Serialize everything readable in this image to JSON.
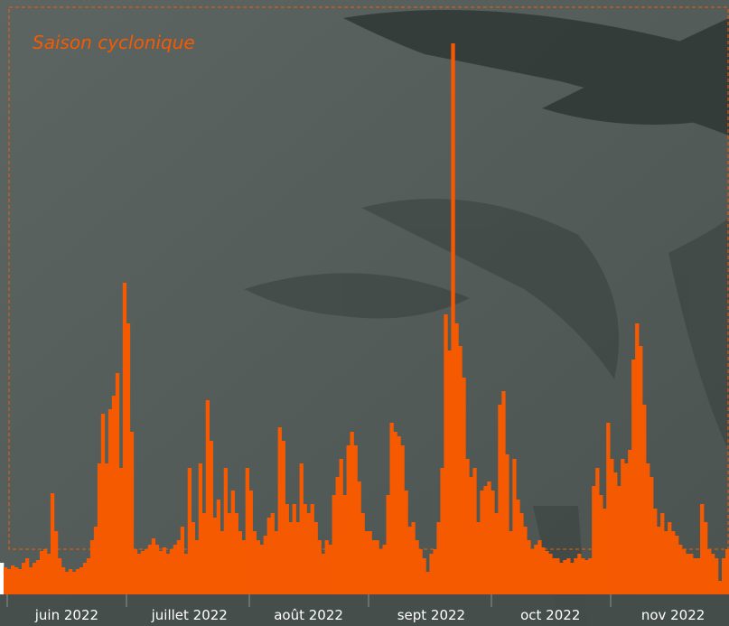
{
  "chart_data": {
    "type": "bar",
    "title": "Saison cyclonique",
    "categories": [
      null,
      null,
      null,
      null,
      null,
      null,
      null,
      null,
      null,
      null,
      null,
      null,
      null,
      null,
      null,
      null,
      null,
      null,
      "juin 2022",
      null,
      null,
      null,
      null,
      null,
      null,
      null,
      null,
      null,
      null,
      null,
      null,
      null,
      null,
      null,
      null,
      null,
      null,
      null,
      null,
      null,
      null,
      null,
      null,
      null,
      null,
      null,
      null,
      null,
      null,
      null,
      null,
      null,
      "juillet 2022",
      null,
      null,
      null,
      null,
      null,
      null,
      null,
      null,
      null,
      null,
      null,
      null,
      null,
      null,
      null,
      null,
      null,
      null,
      null,
      null,
      null,
      null,
      null,
      null,
      null,
      null,
      null,
      null,
      null,
      null,
      null,
      null,
      "août 2022",
      null,
      null,
      null,
      null,
      null,
      null,
      null,
      null,
      null,
      null,
      null,
      null,
      null,
      null,
      null,
      null,
      null,
      null,
      null,
      null,
      null,
      null,
      null,
      null,
      null,
      null,
      null,
      null,
      null,
      null,
      null,
      null,
      null,
      "sept 2022",
      null,
      null,
      null,
      null,
      null,
      null,
      null,
      null,
      null,
      null,
      null,
      null,
      null,
      null,
      null,
      null,
      null,
      null,
      null,
      null,
      null,
      null,
      null,
      null,
      null,
      null,
      null,
      null,
      null,
      null,
      null,
      null,
      "oct 2022",
      null,
      null,
      null,
      null,
      null,
      null,
      null,
      null,
      null,
      null,
      null,
      null,
      null,
      null,
      null,
      null,
      null,
      null,
      null,
      null,
      null,
      null,
      null,
      null,
      null,
      null,
      null,
      null,
      null,
      null,
      null,
      null,
      null,
      "nov 2022",
      null,
      null,
      null,
      null,
      null,
      null,
      null,
      null,
      null,
      null,
      null,
      null,
      null,
      null,
      null
    ],
    "values": [
      35,
      30,
      28,
      32,
      30,
      28,
      35,
      40,
      30,
      35,
      38,
      48,
      50,
      45,
      112,
      70,
      40,
      30,
      25,
      28,
      25,
      28,
      30,
      35,
      40,
      60,
      75,
      145,
      200,
      145,
      205,
      220,
      245,
      140,
      345,
      300,
      180,
      50,
      45,
      48,
      50,
      55,
      62,
      55,
      48,
      52,
      45,
      50,
      55,
      60,
      75,
      45,
      140,
      80,
      60,
      145,
      90,
      215,
      170,
      85,
      105,
      70,
      140,
      90,
      115,
      90,
      70,
      60,
      140,
      115,
      70,
      60,
      55,
      65,
      85,
      90,
      70,
      185,
      170,
      100,
      80,
      100,
      80,
      145,
      100,
      90,
      100,
      80,
      60,
      45,
      60,
      55,
      110,
      130,
      150,
      110,
      165,
      180,
      165,
      125,
      90,
      70,
      70,
      60,
      60,
      50,
      55,
      110,
      190,
      180,
      175,
      165,
      115,
      75,
      80,
      60,
      50,
      40,
      25,
      45,
      50,
      80,
      140,
      310,
      270,
      610,
      300,
      275,
      240,
      150,
      130,
      140,
      80,
      115,
      120,
      125,
      115,
      90,
      210,
      225,
      155,
      70,
      150,
      105,
      90,
      75,
      60,
      50,
      55,
      60,
      52,
      48,
      45,
      40,
      40,
      35,
      38,
      40,
      35,
      40,
      45,
      40,
      38,
      40,
      120,
      140,
      110,
      95,
      190,
      150,
      135,
      120,
      150,
      145,
      160,
      260,
      300,
      275,
      210,
      145,
      130,
      95,
      75,
      90,
      70,
      80,
      70,
      65,
      55,
      50,
      45,
      45,
      40,
      40,
      100,
      80,
      50,
      45,
      40,
      15,
      40,
      50
    ],
    "color": "#f55a00",
    "highlight": {
      "index": 0,
      "color": "#ffffff"
    }
  }
}
